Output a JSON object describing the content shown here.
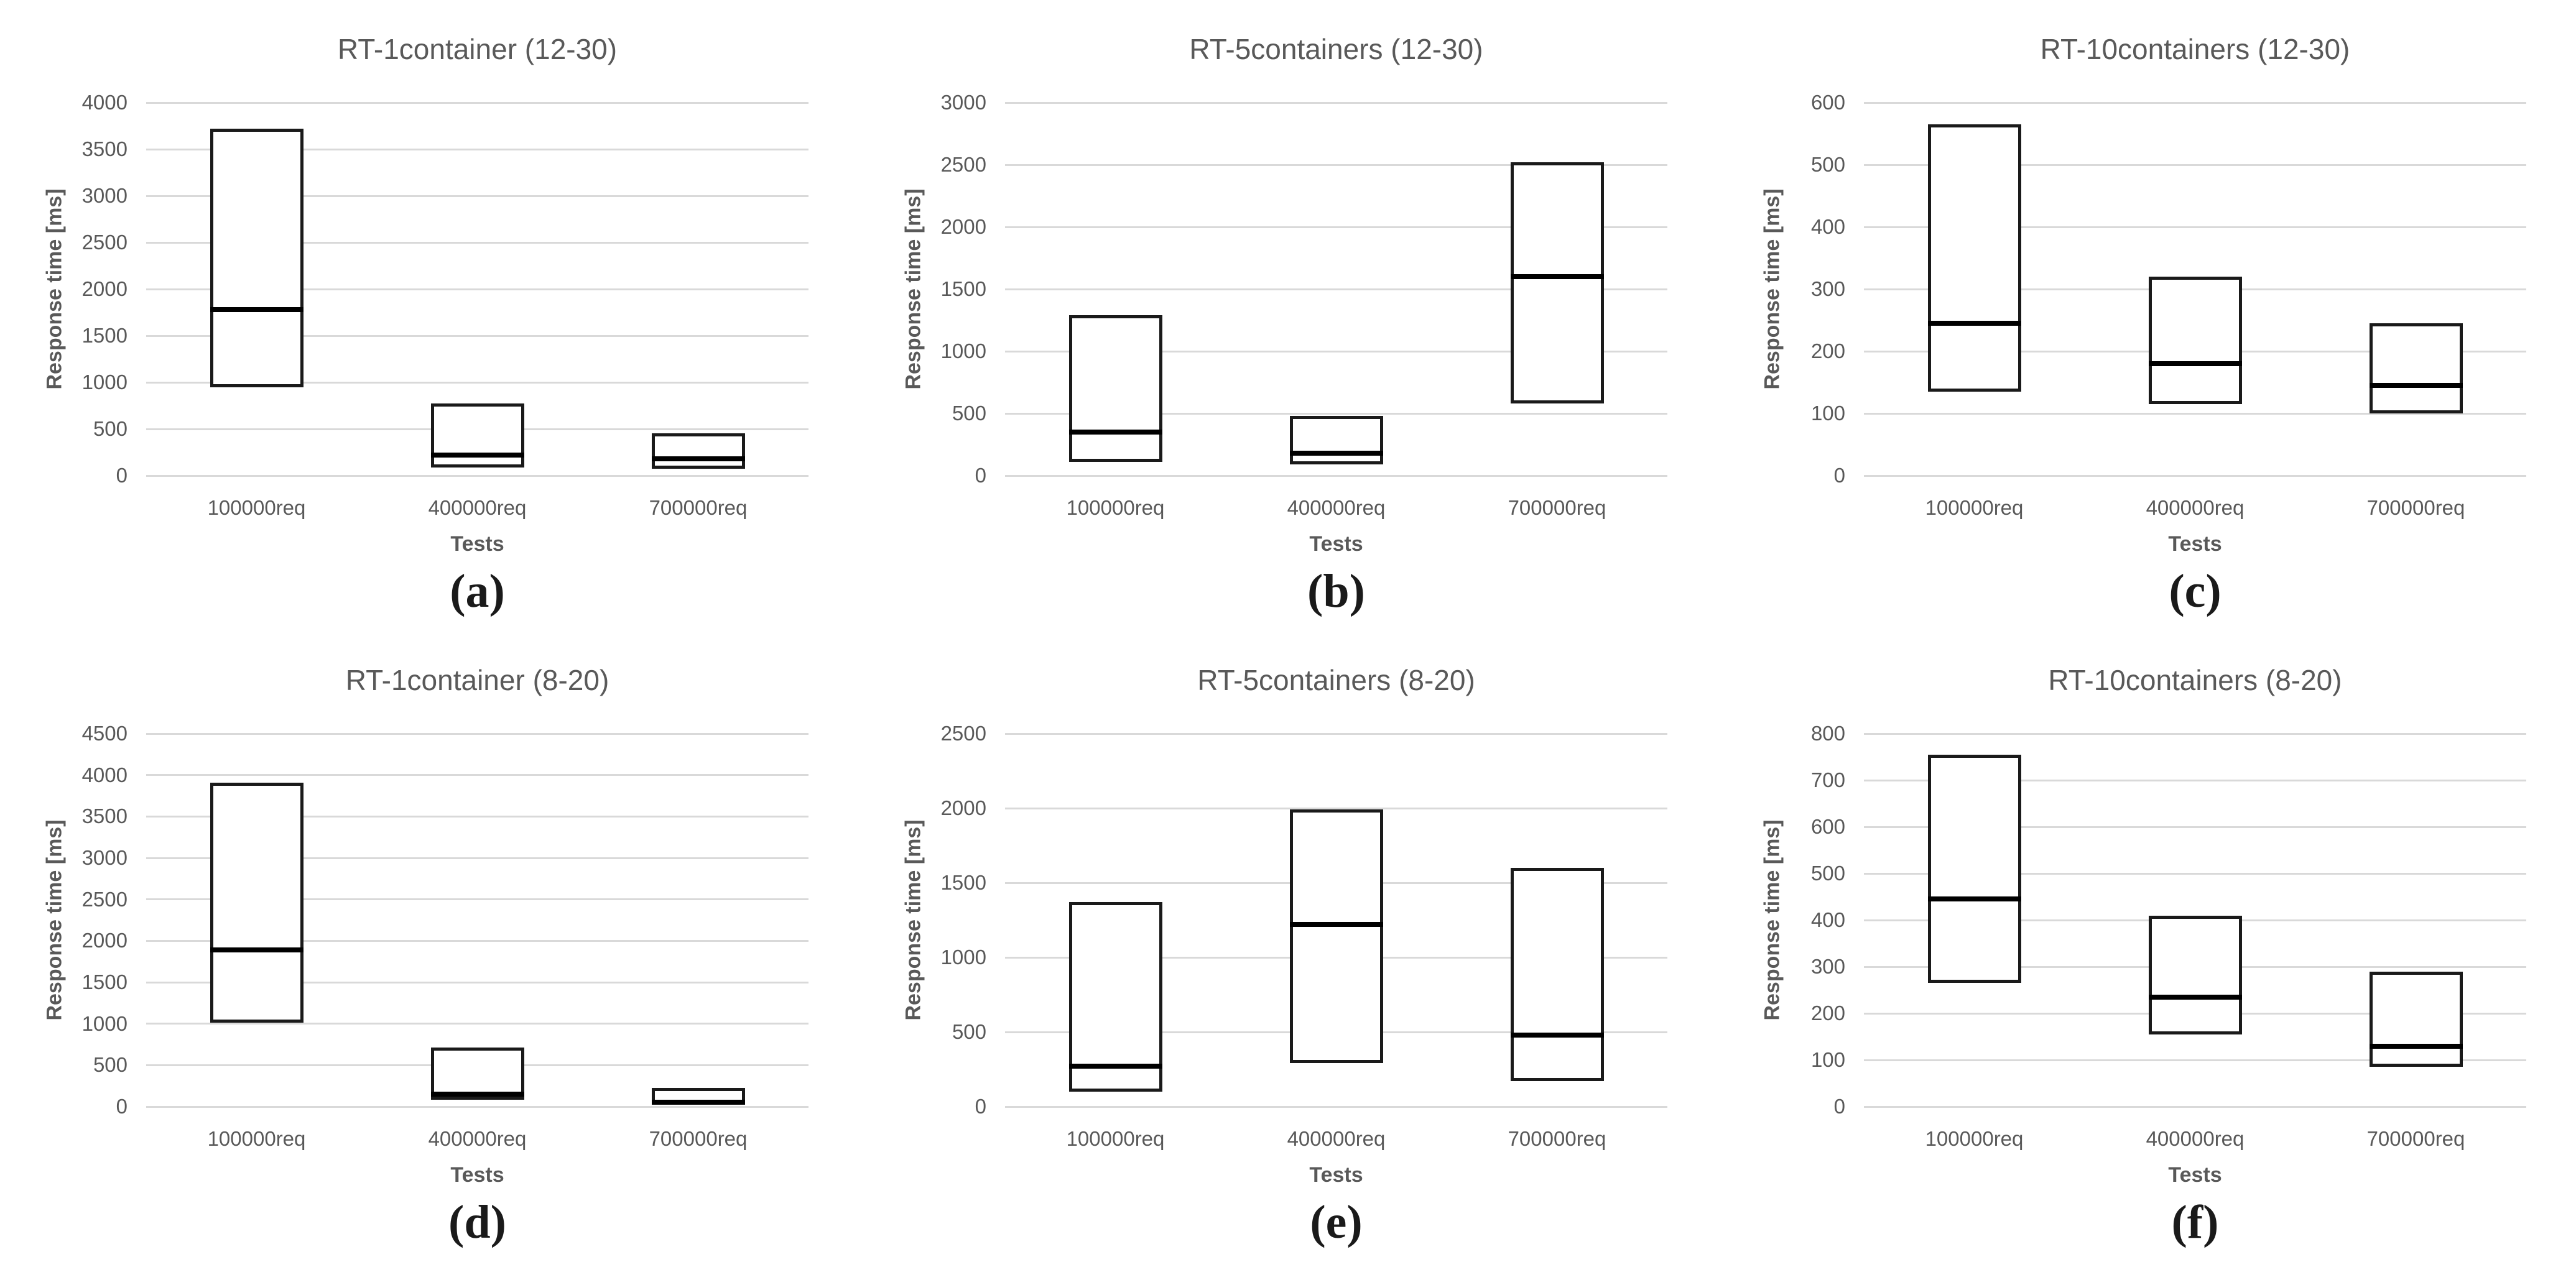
{
  "figure": {
    "colors": {
      "text": "#595959",
      "gridline": "#d9d9d9",
      "box_border": "#1a1a1a",
      "median_line": "#000000",
      "background": "#ffffff"
    }
  },
  "chart_data": [
    {
      "type": "bar",
      "subtype": "floating-range-box-min-median-max",
      "title": "RT-1container (12-30)",
      "label": "(a)",
      "xlabel": "Tests",
      "ylabel": "Response time [ms]",
      "categories": [
        "100000req",
        "400000req",
        "700000req"
      ],
      "ylim": [
        0,
        4000
      ],
      "ytick_step": 500,
      "grid": true,
      "boxes": [
        {
          "min": 950,
          "median": 1780,
          "max": 3720
        },
        {
          "min": 90,
          "median": 220,
          "max": 775
        },
        {
          "min": 75,
          "median": 180,
          "max": 455
        }
      ]
    },
    {
      "type": "bar",
      "subtype": "floating-range-box-min-median-max",
      "title": "RT-5containers (12-30)",
      "label": "(b)",
      "xlabel": "Tests",
      "ylabel": "Response time [ms]",
      "categories": [
        "100000req",
        "400000req",
        "700000req"
      ],
      "ylim": [
        0,
        3000
      ],
      "ytick_step": 500,
      "grid": true,
      "boxes": [
        {
          "min": 110,
          "median": 350,
          "max": 1290
        },
        {
          "min": 90,
          "median": 180,
          "max": 480
        },
        {
          "min": 580,
          "median": 1600,
          "max": 2520
        }
      ]
    },
    {
      "type": "bar",
      "subtype": "floating-range-box-min-median-max",
      "title": "RT-10containers (12-30)",
      "label": "(c)",
      "xlabel": "Tests",
      "ylabel": "Response time [ms]",
      "categories": [
        "100000req",
        "400000req",
        "700000req"
      ],
      "ylim": [
        0,
        600
      ],
      "ytick_step": 100,
      "grid": true,
      "boxes": [
        {
          "min": 135,
          "median": 245,
          "max": 565
        },
        {
          "min": 115,
          "median": 180,
          "max": 320
        },
        {
          "min": 100,
          "median": 145,
          "max": 245
        }
      ]
    },
    {
      "type": "bar",
      "subtype": "floating-range-box-min-median-max",
      "title": "RT-1container (8-20)",
      "label": "(d)",
      "xlabel": "Tests",
      "ylabel": "Response time [ms]",
      "categories": [
        "100000req",
        "400000req",
        "700000req"
      ],
      "ylim": [
        0,
        4500
      ],
      "ytick_step": 500,
      "grid": true,
      "boxes": [
        {
          "min": 1010,
          "median": 1890,
          "max": 3910
        },
        {
          "min": 85,
          "median": 150,
          "max": 715
        },
        {
          "min": 25,
          "median": 50,
          "max": 225
        }
      ]
    },
    {
      "type": "bar",
      "subtype": "floating-range-box-min-median-max",
      "title": "RT-5containers (8-20)",
      "label": "(e)",
      "xlabel": "Tests",
      "ylabel": "Response time [ms]",
      "categories": [
        "100000req",
        "400000req",
        "700000req"
      ],
      "ylim": [
        0,
        2500
      ],
      "ytick_step": 500,
      "grid": true,
      "boxes": [
        {
          "min": 100,
          "median": 270,
          "max": 1370
        },
        {
          "min": 290,
          "median": 1220,
          "max": 1990
        },
        {
          "min": 170,
          "median": 480,
          "max": 1600
        }
      ]
    },
    {
      "type": "bar",
      "subtype": "floating-range-box-min-median-max",
      "title": "RT-10containers (8-20)",
      "label": "(f)",
      "xlabel": "Tests",
      "ylabel": "Response time [ms]",
      "categories": [
        "100000req",
        "400000req",
        "700000req"
      ],
      "ylim": [
        0,
        800
      ],
      "ytick_step": 100,
      "grid": true,
      "boxes": [
        {
          "min": 265,
          "median": 445,
          "max": 755
        },
        {
          "min": 155,
          "median": 235,
          "max": 410
        },
        {
          "min": 85,
          "median": 130,
          "max": 290
        }
      ]
    }
  ]
}
